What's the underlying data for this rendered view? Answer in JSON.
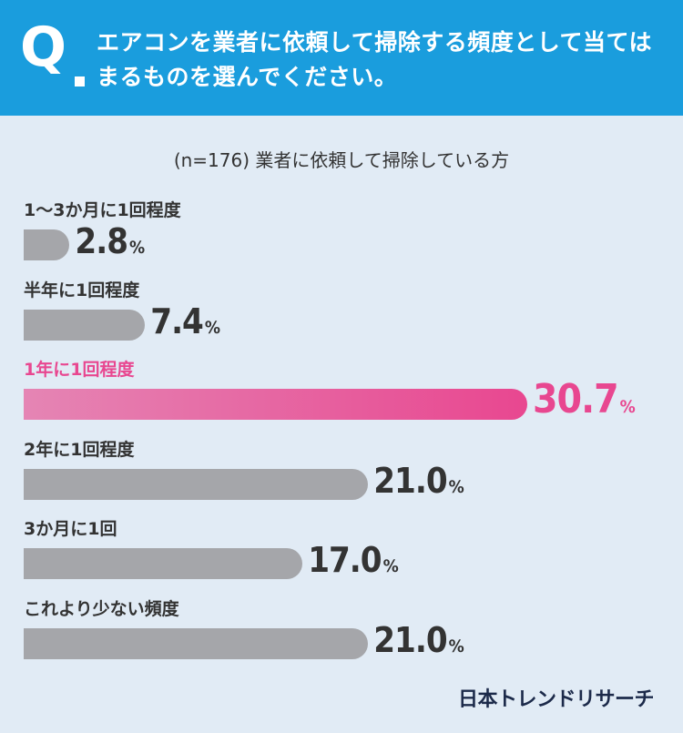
{
  "header": {
    "q_label": "Q",
    "question": "エアコンを業者に依頼して掃除する頻度として当てはまるものを選んでください。"
  },
  "subtitle": "(n=176) 業者に依頼して掃除している方",
  "brand": "日本トレンドリサーチ",
  "colors": {
    "header": "#1a9ddd",
    "bar": "#a5a6aa",
    "highlight": "#e84790"
  },
  "chart_data": {
    "type": "bar",
    "orientation": "horizontal",
    "unit": "%",
    "categories": [
      "1〜3か月に1回程度",
      "半年に1回程度",
      "1年に1回程度",
      "2年に1回程度",
      "3か月に1回",
      "これより少ない頻度"
    ],
    "values": [
      2.8,
      7.4,
      30.7,
      21.0,
      17.0,
      21.0
    ],
    "value_labels": [
      "2.8",
      "7.4",
      "30.7",
      "21.0",
      "17.0",
      "21.0"
    ],
    "highlight_index": 2
  }
}
